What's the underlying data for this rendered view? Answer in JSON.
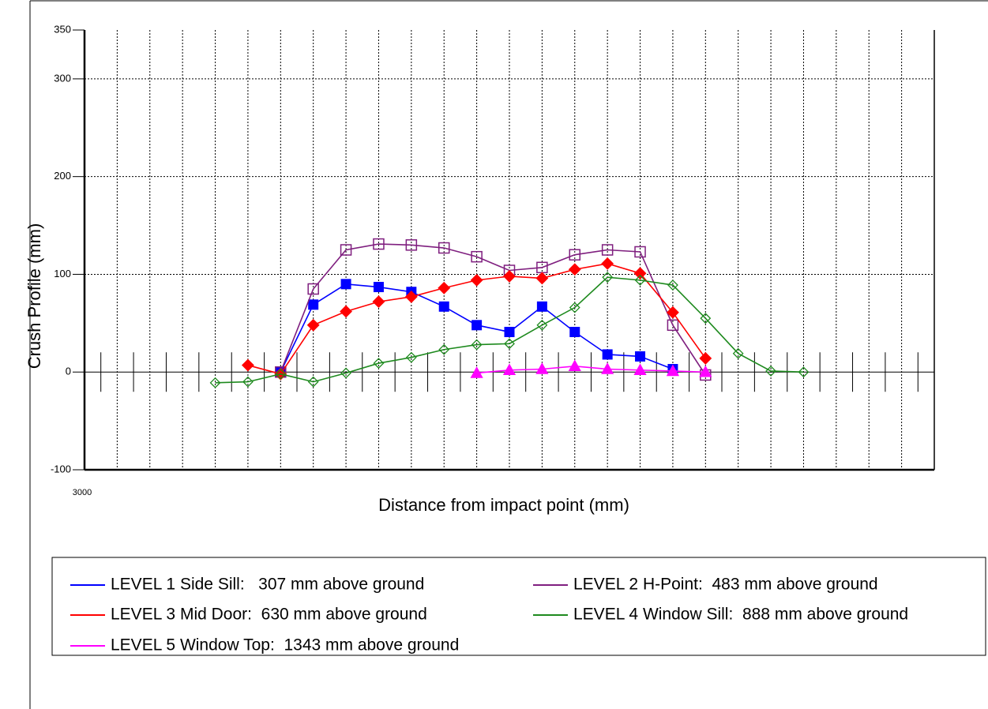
{
  "chart_data": {
    "type": "line",
    "x_label": "Distance from impact point (mm)",
    "y_label": "Crush Profile (mm)",
    "xlim": [
      3000,
      5600
    ],
    "xticks": [
      3000
    ],
    "xgrid": [
      3100,
      3200,
      3300,
      3400,
      3500,
      3600,
      3700,
      3800,
      3900,
      4000,
      4100,
      4200,
      4300,
      4400,
      4500,
      4600,
      4700,
      4800,
      4900,
      5000,
      5100,
      5200,
      5300,
      5400,
      5500
    ],
    "zero_line_ticks": [
      3050,
      3150,
      3250,
      3350,
      3450,
      3550,
      3650,
      3750,
      3850,
      3950,
      4050,
      4150,
      4250,
      4350,
      4450,
      4550,
      4650,
      4750,
      4850,
      4950,
      5050,
      5150,
      5250,
      5350,
      5450,
      5550
    ],
    "ylim": [
      -100,
      350
    ],
    "yticks": [
      350,
      300,
      200,
      100,
      0,
      -100
    ],
    "grid": true,
    "series": [
      {
        "name": "LEVEL 1 Side Sill:   307 mm above ground",
        "color": "#0000ff",
        "marker": "square",
        "x": [
          3600,
          3700,
          3800,
          3900,
          4000,
          4100,
          4200,
          4300,
          4400,
          4500,
          4600,
          4700,
          4800
        ],
        "values": [
          0,
          69,
          90,
          87,
          82,
          67,
          48,
          41,
          67,
          41,
          18,
          16,
          3
        ]
      },
      {
        "name": "LEVEL 2 H-Point:  483 mm above ground",
        "color": "#7f1f7f",
        "marker": "open-square",
        "x": [
          3600,
          3700,
          3800,
          3900,
          4000,
          4100,
          4200,
          4300,
          4400,
          4500,
          4600,
          4700,
          4800,
          4900
        ],
        "values": [
          0,
          85,
          125,
          131,
          130,
          127,
          118,
          104,
          107,
          120,
          125,
          123,
          48,
          -3
        ]
      },
      {
        "name": "LEVEL 3 Mid Door:  630 mm above ground",
        "color": "#ff0000",
        "marker": "diamond",
        "x": [
          3500,
          3600,
          3700,
          3800,
          3900,
          4000,
          4100,
          4200,
          4300,
          4400,
          4500,
          4600,
          4700,
          4800,
          4900
        ],
        "values": [
          7,
          -2,
          48,
          62,
          72,
          77,
          86,
          94,
          98,
          96,
          105,
          111,
          101,
          61,
          14
        ]
      },
      {
        "name": "LEVEL 4 Window Sill:  888 mm above ground",
        "color": "#1e8a1e",
        "marker": "open-diamond",
        "x": [
          3400,
          3500,
          3600,
          3700,
          3800,
          3900,
          4000,
          4100,
          4200,
          4300,
          4400,
          4500,
          4600,
          4700,
          4800,
          4900,
          5000,
          5100,
          5200
        ],
        "values": [
          -11,
          -10,
          -2,
          -10,
          -1,
          9,
          15,
          23,
          28,
          29,
          48,
          66,
          97,
          94,
          89,
          55,
          19,
          1,
          0
        ]
      },
      {
        "name": "LEVEL 5 Window Top:  1343 mm above ground",
        "color": "#ff00ff",
        "marker": "triangle",
        "x": [
          4200,
          4300,
          4400,
          4500,
          4600,
          4700,
          4800,
          4900
        ],
        "values": [
          -1,
          2,
          3,
          6,
          3,
          2,
          1,
          0
        ]
      }
    ]
  }
}
